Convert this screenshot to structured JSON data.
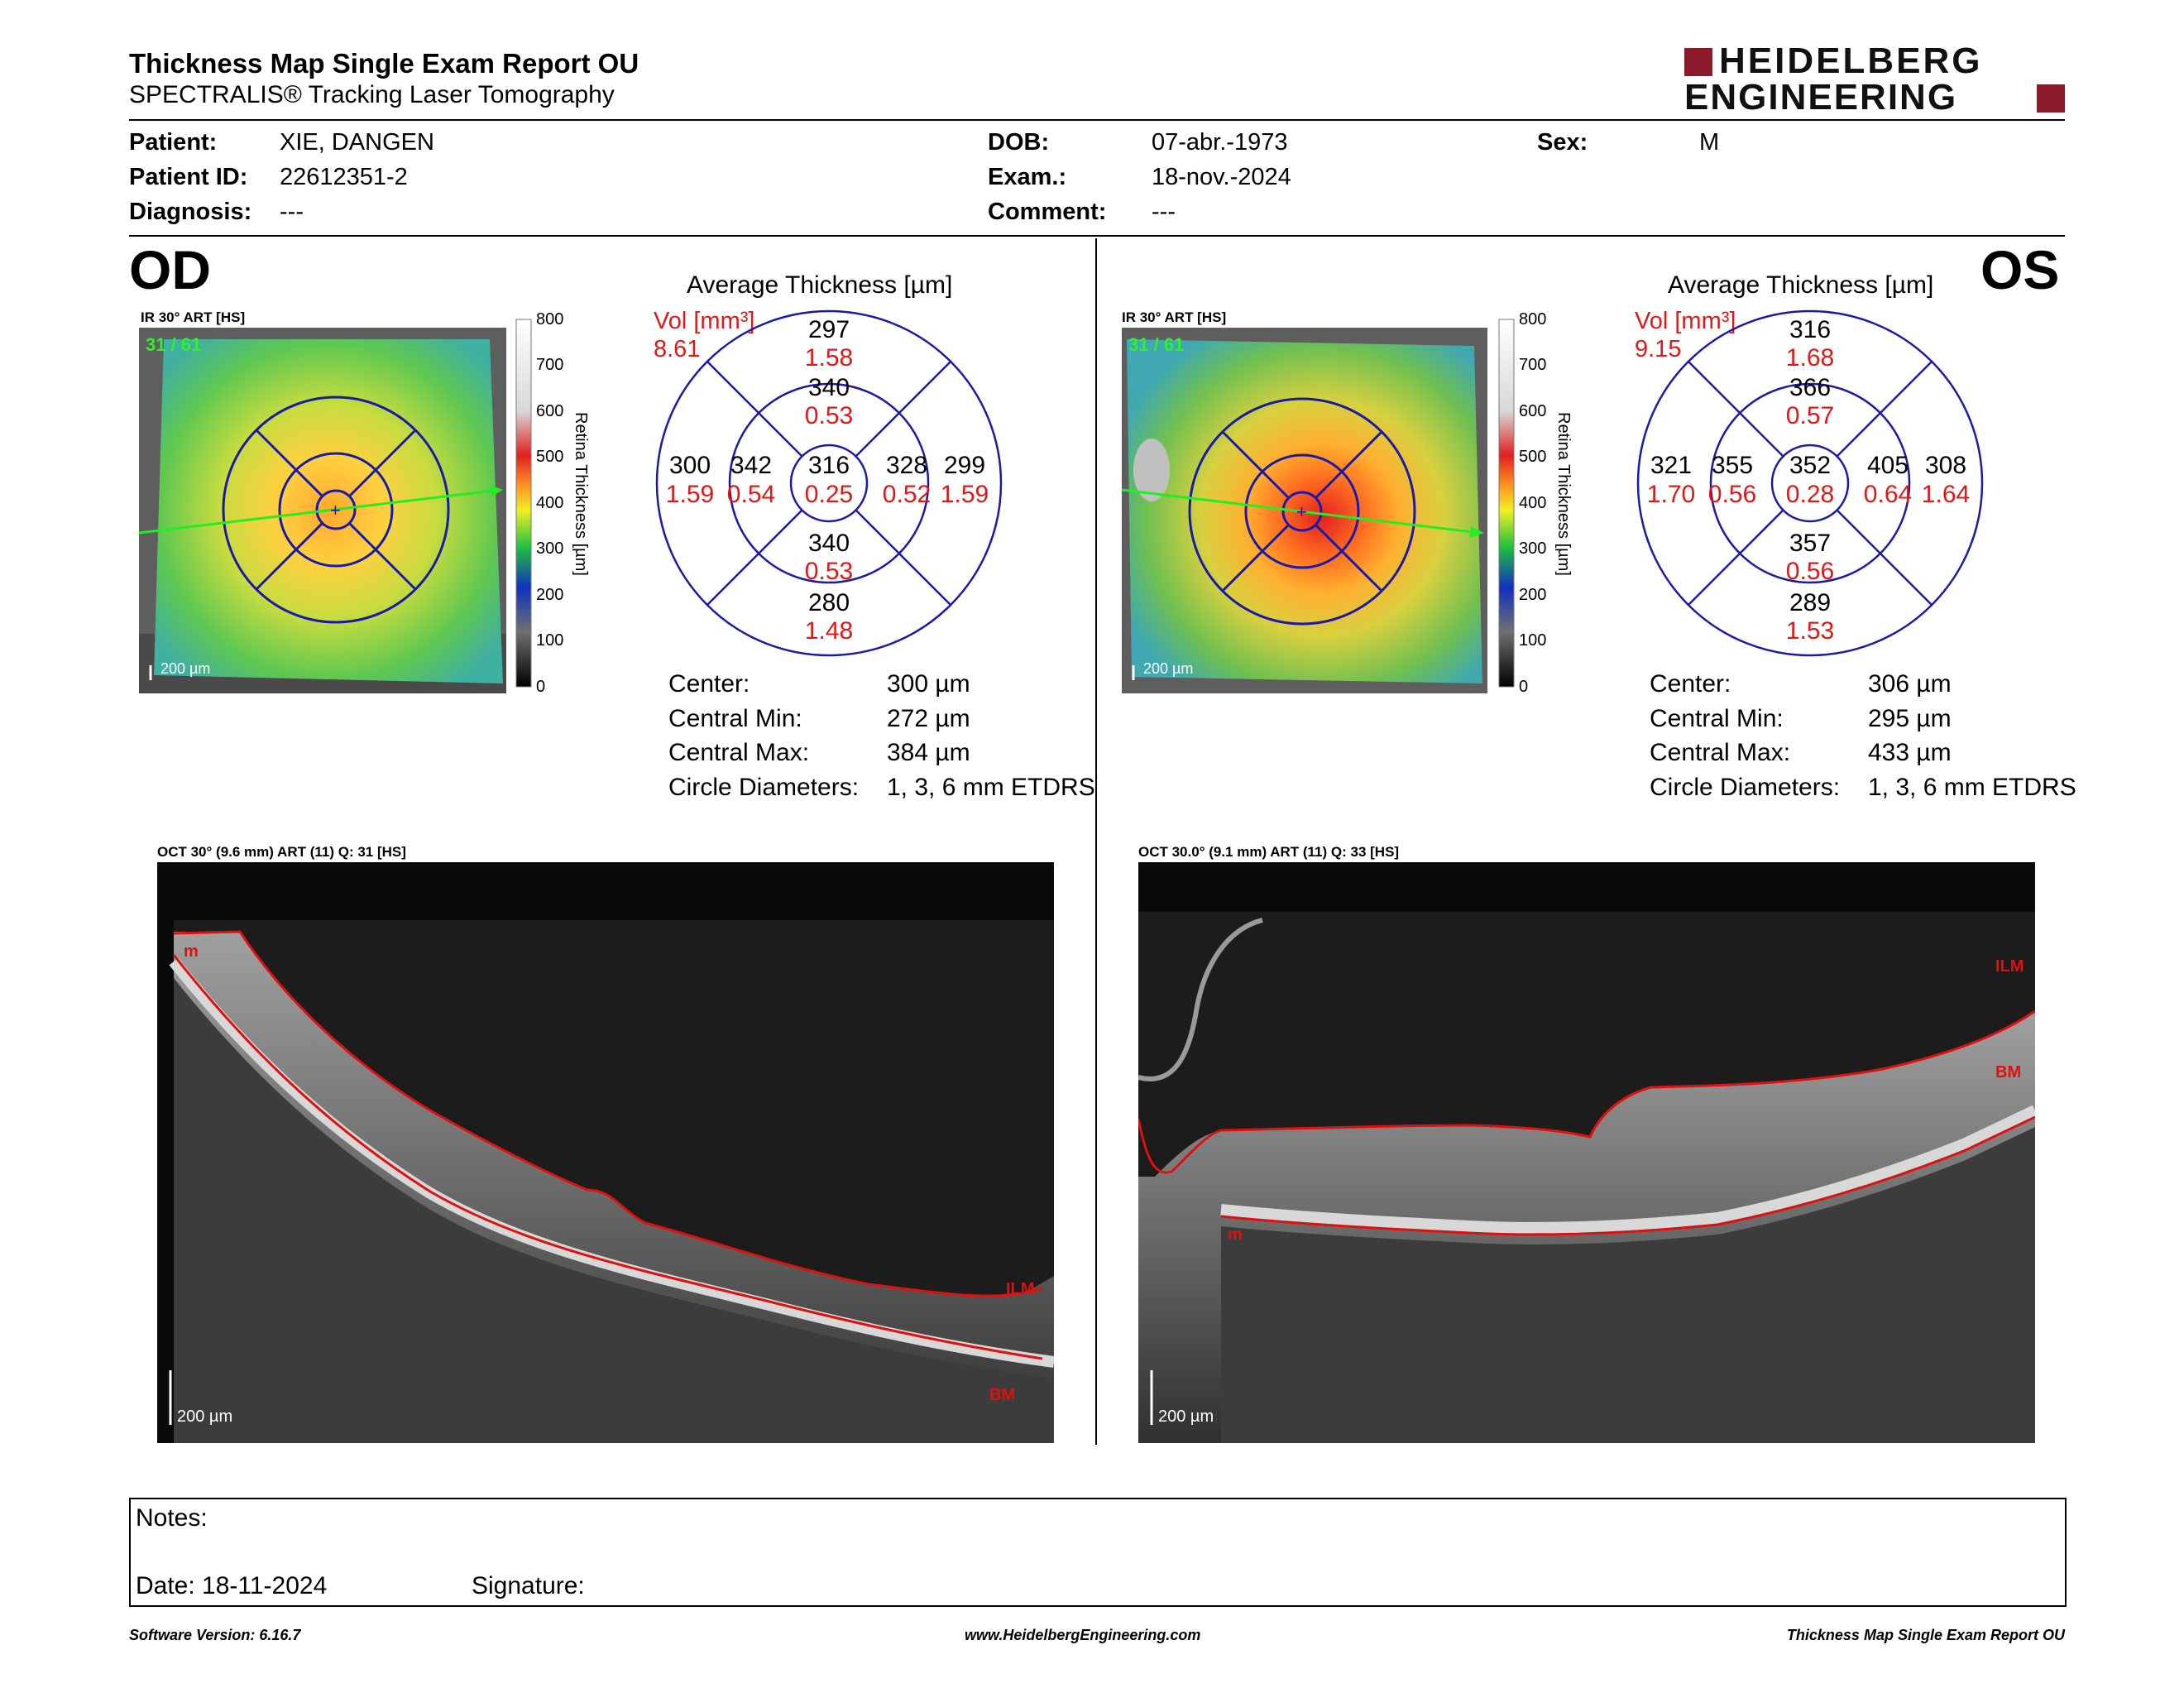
{
  "header": {
    "title": "Thickness Map Single Exam Report OU",
    "subtitle": "SPECTRALIS® Tracking Laser Tomography",
    "logo_line1": "HEIDELBERG",
    "logo_line2": "ENGINEERING",
    "brand_color": "#8b1a2b"
  },
  "patient": {
    "patient_label": "Patient:",
    "patient_value": "XIE, DANGEN",
    "id_label": "Patient ID:",
    "id_value": "22612351-2",
    "diagnosis_label": "Diagnosis:",
    "diagnosis_value": "---",
    "dob_label": "DOB:",
    "dob_value": "07-abr.-1973",
    "exam_label": "Exam.:",
    "exam_value": "18-nov.-2024",
    "comment_label": "Comment:",
    "comment_value": "---",
    "sex_label": "Sex:",
    "sex_value": "M"
  },
  "scale": {
    "ticks": [
      "800",
      "700",
      "600",
      "500",
      "400",
      "300",
      "200",
      "100",
      "0"
    ],
    "label": "Retina  Thickness [µm]"
  },
  "od": {
    "eye": "OD",
    "ir_title": "IR 30° ART [HS]",
    "ir_counter": "31 / 61",
    "ir_scale": "200 µm",
    "avg_title": "Average Thickness [µm]",
    "vol_label": "Vol [mm³]",
    "vol_value": "8.61",
    "grid": {
      "superior_outer": [
        "297",
        "1.58"
      ],
      "superior_inner": [
        "340",
        "0.53"
      ],
      "temporal_outer": [
        "300",
        "1.59"
      ],
      "temporal_inner": [
        "342",
        "0.54"
      ],
      "center": [
        "316",
        "0.25"
      ],
      "nasal_inner": [
        "328",
        "0.52"
      ],
      "nasal_outer": [
        "299",
        "1.59"
      ],
      "inferior_inner": [
        "340",
        "0.53"
      ],
      "inferior_outer": [
        "280",
        "1.48"
      ]
    },
    "stats": [
      [
        "Center:",
        "300 µm"
      ],
      [
        "Central Min:",
        "272 µm"
      ],
      [
        "Central Max:",
        "384 µm"
      ],
      [
        "Circle Diameters:",
        "1, 3, 6 mm ETDRS"
      ]
    ],
    "oct_title": "OCT 30° (9.6 mm) ART (11) Q: 31 [HS]",
    "oct_scale": "200 µm",
    "oct_labels": [
      "m",
      "ILM",
      "BM"
    ]
  },
  "os": {
    "eye": "OS",
    "ir_title": "IR 30° ART [HS]",
    "ir_counter": "31 / 61",
    "ir_scale": "200 µm",
    "avg_title": "Average Thickness [µm]",
    "vol_label": "Vol [mm³]",
    "vol_value": "9.15",
    "grid": {
      "superior_outer": [
        "316",
        "1.68"
      ],
      "superior_inner": [
        "366",
        "0.57"
      ],
      "temporal_outer": [
        "321",
        "1.70"
      ],
      "temporal_inner": [
        "355",
        "0.56"
      ],
      "center": [
        "352",
        "0.28"
      ],
      "nasal_inner": [
        "405",
        "0.64"
      ],
      "nasal_outer": [
        "308",
        "1.64"
      ],
      "inferior_inner": [
        "357",
        "0.56"
      ],
      "inferior_outer": [
        "289",
        "1.53"
      ]
    },
    "stats": [
      [
        "Center:",
        "306 µm"
      ],
      [
        "Central Min:",
        "295 µm"
      ],
      [
        "Central Max:",
        "433 µm"
      ],
      [
        "Circle Diameters:",
        "1, 3, 6 mm ETDRS"
      ]
    ],
    "oct_title": "OCT 30.0° (9.1 mm) ART (11) Q: 33 [HS]",
    "oct_scale": "200 µm",
    "oct_labels": [
      "ILM",
      "BM",
      "m"
    ]
  },
  "notes": {
    "notes_label": "Notes:",
    "date_label": "Date: 18-11-2024",
    "signature_label": "Signature:"
  },
  "footer": {
    "version": "Software Version: 6.16.7",
    "url": "www.HeidelbergEngineering.com",
    "report": "Thickness Map Single Exam Report OU"
  },
  "colors": {
    "grid_blue": "#1a1aa8",
    "value_red": "#e01818",
    "counter_green": "#33ee33",
    "segmentation_red": "#e01010"
  }
}
